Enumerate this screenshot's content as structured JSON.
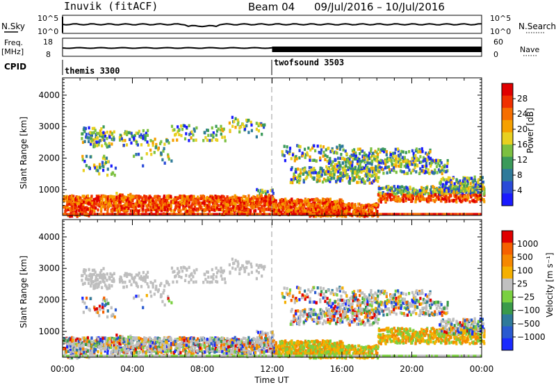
{
  "header": {
    "station": "Inuvik (fitACF)",
    "beam": "Beam 04",
    "date_range": "09/Jul/2016 – 10/Jul/2016"
  },
  "top_panels": {
    "nsky_label": "N.Sky",
    "nsky_ticks": [
      "10^5",
      "10^0"
    ],
    "nsearch_label": "N.Search",
    "nsearch_ticks": [
      "10^5",
      "10^0"
    ],
    "freq_label": "Freq.",
    "freq_unit": "[MHz]",
    "freq_ticks": [
      "18",
      "8"
    ],
    "nave_label": "Nave",
    "nave_ticks": [
      "60",
      "0"
    ],
    "cpid_label": "CPID",
    "cpid_segments": [
      {
        "name": "themis 3300",
        "start_hour": 0
      },
      {
        "name": "twofsound 3503",
        "start_hour": 12
      }
    ]
  },
  "chart_data": [
    {
      "type": "heatmap",
      "name": "power",
      "ylabel": "Slant Range [km]",
      "yticks": [
        1000,
        2000,
        3000,
        4000
      ],
      "ylim": [
        180,
        4550
      ],
      "xlim_hours": [
        0,
        24
      ],
      "colorbar_label": "Power [dB]",
      "colorbar_ticks": [
        "4",
        "8",
        "12",
        "16",
        "20",
        "24",
        "28"
      ],
      "colorbar_colors": [
        "#1a1aff",
        "#2a4ad8",
        "#2f7a9a",
        "#3b9a5a",
        "#7cc040",
        "#e8d020",
        "#f5a000",
        "#f56e00",
        "#f03000",
        "#e00000"
      ]
    },
    {
      "type": "heatmap",
      "name": "velocity",
      "ylabel": "Slant Range [km]",
      "yticks": [
        1000,
        2000,
        3000,
        4000
      ],
      "ylim": [
        180,
        4550
      ],
      "xlim_hours": [
        0,
        24
      ],
      "colorbar_label": "Velocity [m s⁻¹]",
      "colorbar_ticks": [
        "1000",
        "500",
        "100",
        "25",
        "−25",
        "−100",
        "−500",
        "−1000"
      ],
      "colorbar_colors": [
        "#1a2aff",
        "#2a5ad0",
        "#2f7a9a",
        "#3a9a4a",
        "#7ad040",
        "#c0c0c0",
        "#f5b000",
        "#f58800",
        "#f56000",
        "#e00000"
      ],
      "ground_scatter_color": "#bebebe"
    }
  ],
  "xaxis": {
    "label": "Time UT",
    "ticks": [
      "00:00",
      "04:00",
      "08:00",
      "12:00",
      "16:00",
      "20:00",
      "00:00"
    ],
    "tick_hours": [
      0,
      4,
      8,
      12,
      16,
      20,
      24
    ]
  }
}
